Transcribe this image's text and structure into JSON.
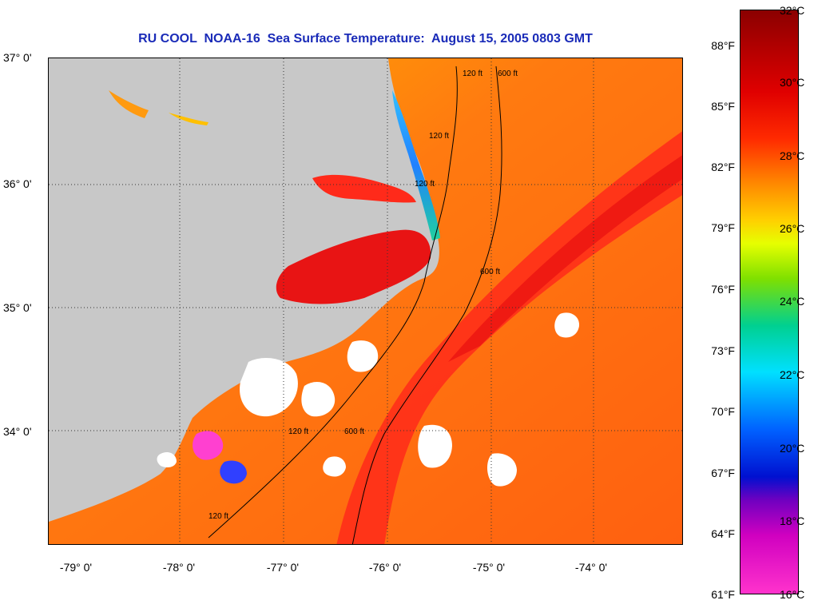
{
  "title": "RU COOL  NOAA-16  Sea Surface Temperature:  August 15, 2005 0803 GMT",
  "latitude_labels": [
    "37° 0'",
    "36° 0'",
    "35° 0'",
    "34° 0'"
  ],
  "longitude_labels": [
    "-79° 0'",
    "-78° 0'",
    "-77° 0'",
    "-76° 0'",
    "-75° 0'",
    "-74° 0'"
  ],
  "colorbar": {
    "fahrenheit_labels": [
      "88°F",
      "85°F",
      "82°F",
      "79°F",
      "76°F",
      "73°F",
      "70°F",
      "67°F",
      "64°F",
      "61°F"
    ],
    "celsius_labels": [
      "32°C",
      "30°C",
      "28°C",
      "26°C",
      "24°C",
      "22°C",
      "20°C",
      "18°C",
      "16°C"
    ]
  },
  "bathymetry_labels": [
    "120 ft",
    "120 ft",
    "600 ft",
    "120 ft",
    "600 ft",
    "120 ft",
    "600 ft",
    "120 ft"
  ],
  "colors": {
    "land": "#c8c8c8",
    "water_warm": "#ff6a10",
    "gulf_stream": "#ff1e1e",
    "cloud": "#ffffff",
    "title": "#1a2bb8"
  }
}
